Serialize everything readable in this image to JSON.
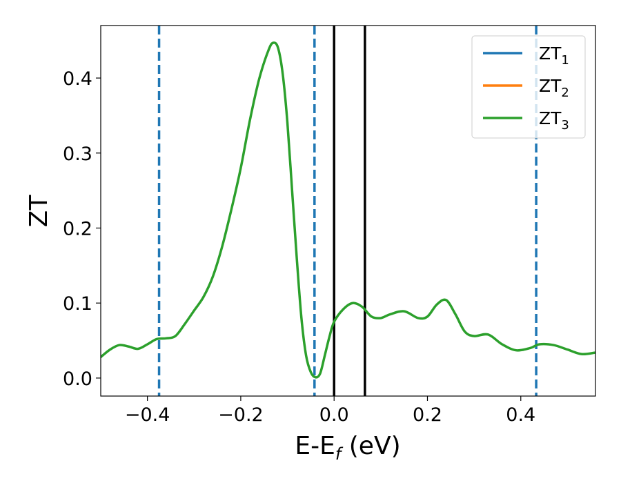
{
  "chart_data": {
    "type": "line",
    "xlim": [
      -0.5,
      0.56
    ],
    "ylim": [
      -0.024,
      0.47
    ],
    "xticks": [
      -0.4,
      -0.2,
      0.0,
      0.2,
      0.4
    ],
    "xtick_labels": [
      "−0.4",
      "−0.2",
      "0.0",
      "0.2",
      "0.4"
    ],
    "yticks": [
      0.0,
      0.1,
      0.2,
      0.3,
      0.4
    ],
    "ytick_labels": [
      "0.0",
      "0.1",
      "0.2",
      "0.3",
      "0.4"
    ],
    "xlabel": {
      "main": "E-E",
      "sub": "f",
      "tail": " (eV)"
    },
    "ylabel": "ZT",
    "grid": false,
    "legend_position": "top-right",
    "series": [
      {
        "name": "ZT",
        "sub": "1",
        "color": "#1f77b4",
        "x": [],
        "y": []
      },
      {
        "name": "ZT",
        "sub": "2",
        "color": "#ff7f0e",
        "x": [],
        "y": []
      },
      {
        "name": "ZT",
        "sub": "3",
        "color": "#2ca02c",
        "x": [
          -0.5,
          -0.48,
          -0.46,
          -0.44,
          -0.42,
          -0.4,
          -0.38,
          -0.36,
          -0.34,
          -0.32,
          -0.3,
          -0.28,
          -0.26,
          -0.24,
          -0.22,
          -0.2,
          -0.18,
          -0.16,
          -0.14,
          -0.13,
          -0.12,
          -0.11,
          -0.1,
          -0.09,
          -0.08,
          -0.07,
          -0.06,
          -0.05,
          -0.04,
          -0.03,
          -0.02,
          -0.01,
          0.0,
          0.02,
          0.04,
          0.06,
          0.08,
          0.1,
          0.12,
          0.15,
          0.18,
          0.2,
          0.22,
          0.24,
          0.26,
          0.28,
          0.3,
          0.33,
          0.36,
          0.39,
          0.42,
          0.44,
          0.47,
          0.5,
          0.53,
          0.56
        ],
        "y": [
          0.028,
          0.038,
          0.044,
          0.042,
          0.039,
          0.045,
          0.052,
          0.053,
          0.056,
          0.072,
          0.09,
          0.108,
          0.135,
          0.175,
          0.225,
          0.28,
          0.345,
          0.4,
          0.438,
          0.447,
          0.44,
          0.405,
          0.34,
          0.25,
          0.16,
          0.08,
          0.03,
          0.008,
          0.001,
          0.006,
          0.03,
          0.055,
          0.075,
          0.092,
          0.1,
          0.095,
          0.082,
          0.08,
          0.085,
          0.089,
          0.08,
          0.082,
          0.098,
          0.104,
          0.085,
          0.062,
          0.056,
          0.058,
          0.045,
          0.037,
          0.04,
          0.045,
          0.044,
          0.038,
          0.032,
          0.034
        ]
      }
    ],
    "vlines": [
      {
        "x": -0.375,
        "style": "dashed",
        "color": "#1f77b4"
      },
      {
        "x": -0.042,
        "style": "dashed",
        "color": "#1f77b4"
      },
      {
        "x": 0.0,
        "style": "solid",
        "color": "#000000"
      },
      {
        "x": 0.066,
        "style": "solid",
        "color": "#000000"
      },
      {
        "x": 0.433,
        "style": "dashed",
        "color": "#1f77b4"
      }
    ]
  }
}
